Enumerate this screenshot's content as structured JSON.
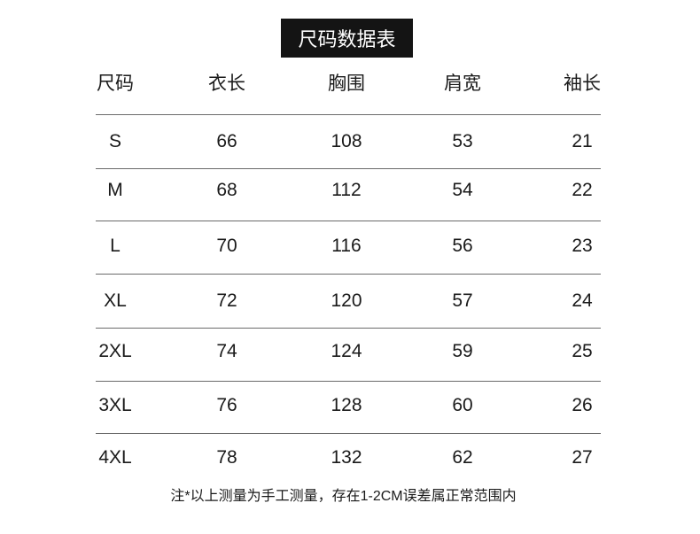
{
  "title": "尺码数据表",
  "headers": [
    "尺码",
    "衣长",
    "胸围",
    "肩宽",
    "袖长"
  ],
  "rows": [
    [
      "S",
      "66",
      "108",
      "53",
      "21"
    ],
    [
      "M",
      "68",
      "112",
      "54",
      "22"
    ],
    [
      "L",
      "70",
      "116",
      "56",
      "23"
    ],
    [
      "XL",
      "72",
      "120",
      "57",
      "24"
    ],
    [
      "2XL",
      "74",
      "124",
      "59",
      "25"
    ],
    [
      "3XL",
      "76",
      "128",
      "60",
      "26"
    ],
    [
      "4XL",
      "78",
      "132",
      "62",
      "27"
    ]
  ],
  "note": "注*以上测量为手工测量，存在1-2CM误差属正常范围内"
}
